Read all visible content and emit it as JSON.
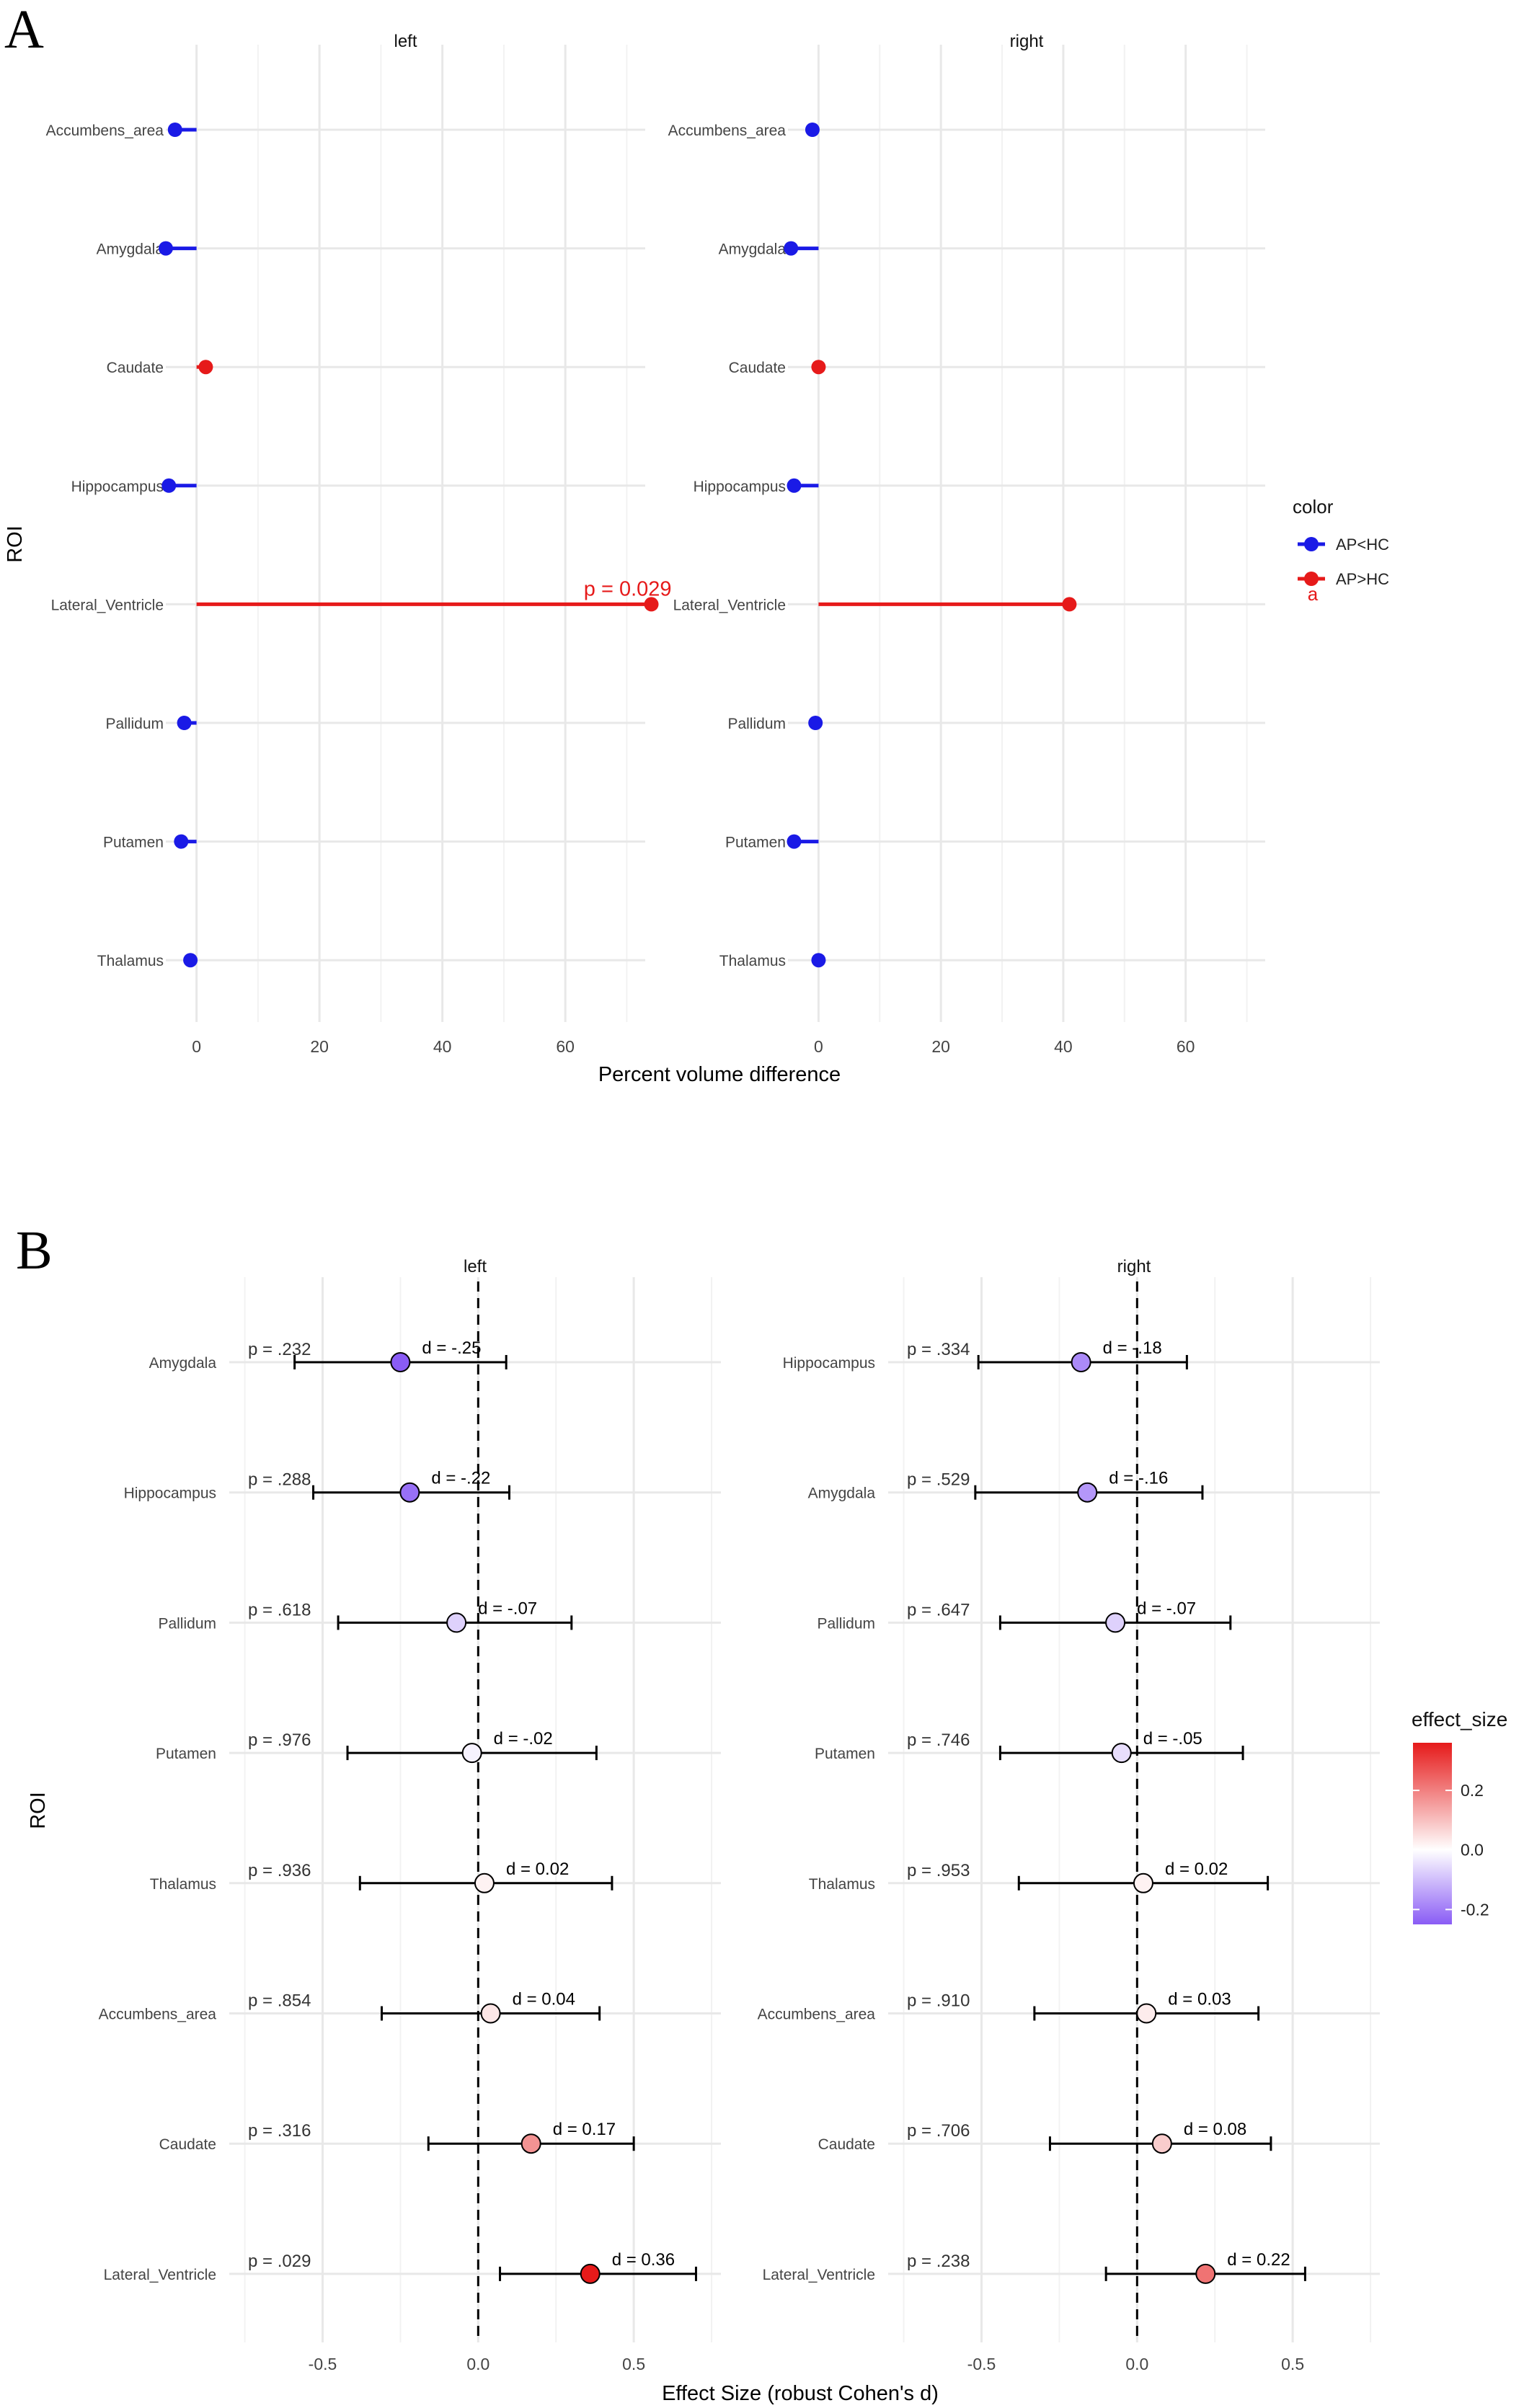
{
  "chart_data": [
    {
      "panel": "A",
      "type": "lollipop",
      "xlabel": "Percent volume difference",
      "ylabel": "ROI",
      "xlim": [
        -5,
        73
      ],
      "xticks": [
        0,
        20,
        40,
        60
      ],
      "categories": [
        "Accumbens_area",
        "Amygdala",
        "Caudate",
        "Hippocampus",
        "Lateral_Ventricle",
        "Pallidum",
        "Putamen",
        "Thalamus"
      ],
      "facets": [
        {
          "name": "left",
          "values": [
            -3.5,
            -5,
            1.5,
            -4.5,
            74,
            -2,
            -2.5,
            -1
          ],
          "groups": [
            "AP<HC",
            "AP<HC",
            "AP>HC",
            "AP<HC",
            "AP>HC",
            "AP<HC",
            "AP<HC",
            "AP<HC"
          ],
          "annotation": {
            "category": "Lateral_Ventricle",
            "text": "p = 0.029"
          }
        },
        {
          "name": "right",
          "values": [
            -1,
            -4.5,
            0,
            -4,
            41,
            -0.5,
            -4,
            0
          ],
          "groups": [
            "AP<HC",
            "AP<HC",
            "AP>HC",
            "AP<HC",
            "AP>HC",
            "AP<HC",
            "AP<HC",
            "AP<HC"
          ]
        }
      ],
      "legend": {
        "title": "color",
        "entries": [
          {
            "label": "AP<HC",
            "color": "#1a1ae6"
          },
          {
            "label": "AP>HC",
            "color": "#e61a1a",
            "glyph": "a"
          }
        ]
      }
    },
    {
      "panel": "B",
      "type": "forest",
      "xlabel": "Effect Size (robust Cohen's d)",
      "ylabel": "ROI",
      "xlim": [
        -0.8,
        0.78
      ],
      "xticks": [
        -0.5,
        0.0,
        0.5
      ],
      "xtick_labels": [
        "-0.5",
        "0.0",
        "0.5"
      ],
      "facets": [
        {
          "name": "left",
          "rows": [
            {
              "roi": "Amygdala",
              "d": -0.25,
              "lo": -0.59,
              "hi": 0.09,
              "d_label": "d = -.25",
              "p_label": "p = .232"
            },
            {
              "roi": "Hippocampus",
              "d": -0.22,
              "lo": -0.53,
              "hi": 0.1,
              "d_label": "d = -.22",
              "p_label": "p = .288"
            },
            {
              "roi": "Pallidum",
              "d": -0.07,
              "lo": -0.45,
              "hi": 0.3,
              "d_label": "d = -.07",
              "p_label": "p = .618"
            },
            {
              "roi": "Putamen",
              "d": -0.02,
              "lo": -0.42,
              "hi": 0.38,
              "d_label": "d = -.02",
              "p_label": "p = .976"
            },
            {
              "roi": "Thalamus",
              "d": 0.02,
              "lo": -0.38,
              "hi": 0.43,
              "d_label": "d = 0.02",
              "p_label": "p = .936"
            },
            {
              "roi": "Accumbens_area",
              "d": 0.04,
              "lo": -0.31,
              "hi": 0.39,
              "d_label": "d = 0.04",
              "p_label": "p = .854"
            },
            {
              "roi": "Caudate",
              "d": 0.17,
              "lo": -0.16,
              "hi": 0.5,
              "d_label": "d = 0.17",
              "p_label": "p = .316"
            },
            {
              "roi": "Lateral_Ventricle",
              "d": 0.36,
              "lo": 0.07,
              "hi": 0.7,
              "d_label": "d = 0.36",
              "p_label": "p = .029"
            }
          ]
        },
        {
          "name": "right",
          "rows": [
            {
              "roi": "Hippocampus",
              "d": -0.18,
              "lo": -0.51,
              "hi": 0.16,
              "d_label": "d = -.18",
              "p_label": "p = .334"
            },
            {
              "roi": "Amygdala",
              "d": -0.16,
              "lo": -0.52,
              "hi": 0.21,
              "d_label": "d = -.16",
              "p_label": "p = .529"
            },
            {
              "roi": "Pallidum",
              "d": -0.07,
              "lo": -0.44,
              "hi": 0.3,
              "d_label": "d = -.07",
              "p_label": "p = .647"
            },
            {
              "roi": "Putamen",
              "d": -0.05,
              "lo": -0.44,
              "hi": 0.34,
              "d_label": "d = -.05",
              "p_label": "p = .746"
            },
            {
              "roi": "Thalamus",
              "d": 0.02,
              "lo": -0.38,
              "hi": 0.42,
              "d_label": "d = 0.02",
              "p_label": "p = .953"
            },
            {
              "roi": "Accumbens_area",
              "d": 0.03,
              "lo": -0.33,
              "hi": 0.39,
              "d_label": "d = 0.03",
              "p_label": "p = .910"
            },
            {
              "roi": "Caudate",
              "d": 0.08,
              "lo": -0.28,
              "hi": 0.43,
              "d_label": "d = 0.08",
              "p_label": "p = .706"
            },
            {
              "roi": "Lateral_Ventricle",
              "d": 0.22,
              "lo": -0.1,
              "hi": 0.54,
              "d_label": "d = 0.22",
              "p_label": "p = .238"
            }
          ]
        }
      ],
      "legend": {
        "title": "effect_size",
        "ticks": [
          0.2,
          0.0,
          -0.2
        ],
        "tick_labels": [
          "0.2",
          "0.0",
          "-0.2"
        ],
        "range": [
          -0.25,
          0.36
        ],
        "low_color": "#8a5cf5",
        "mid_color": "#ffffff",
        "high_color": "#e61a1a"
      }
    }
  ]
}
